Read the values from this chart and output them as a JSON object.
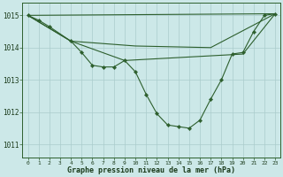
{
  "background_color": "#cce8e8",
  "grid_color": "#aacccc",
  "line_color": "#2d5f2d",
  "marker_color": "#2d5f2d",
  "title": "Graphe pression niveau de la mer (hPa)",
  "xlim": [
    -0.5,
    23.5
  ],
  "ylim": [
    1010.6,
    1015.4
  ],
  "yticks": [
    1011,
    1012,
    1013,
    1014,
    1015
  ],
  "xticks": [
    0,
    1,
    2,
    3,
    4,
    5,
    6,
    7,
    8,
    9,
    10,
    11,
    12,
    13,
    14,
    15,
    16,
    17,
    18,
    19,
    20,
    21,
    22,
    23
  ],
  "series": [
    {
      "x": [
        0,
        1,
        2,
        4,
        5,
        6,
        7,
        8,
        9,
        10,
        11,
        12,
        13,
        14,
        15,
        16,
        17,
        18,
        19,
        20,
        21,
        22,
        23
      ],
      "y": [
        1015.0,
        1014.85,
        1014.65,
        1014.2,
        1013.85,
        1013.45,
        1013.4,
        1013.4,
        1013.6,
        1013.25,
        1012.55,
        1011.95,
        1011.6,
        1011.55,
        1011.5,
        1011.75,
        1012.4,
        1013.0,
        1013.8,
        1013.85,
        1014.5,
        1015.0,
        1015.05
      ]
    },
    {
      "x": [
        0,
        23
      ],
      "y": [
        1015.0,
        1015.05
      ]
    },
    {
      "x": [
        0,
        4,
        10,
        17,
        23
      ],
      "y": [
        1015.0,
        1014.2,
        1014.05,
        1014.0,
        1015.05
      ]
    },
    {
      "x": [
        0,
        4,
        9,
        20,
        23
      ],
      "y": [
        1015.0,
        1014.2,
        1013.6,
        1013.8,
        1015.05
      ]
    }
  ]
}
